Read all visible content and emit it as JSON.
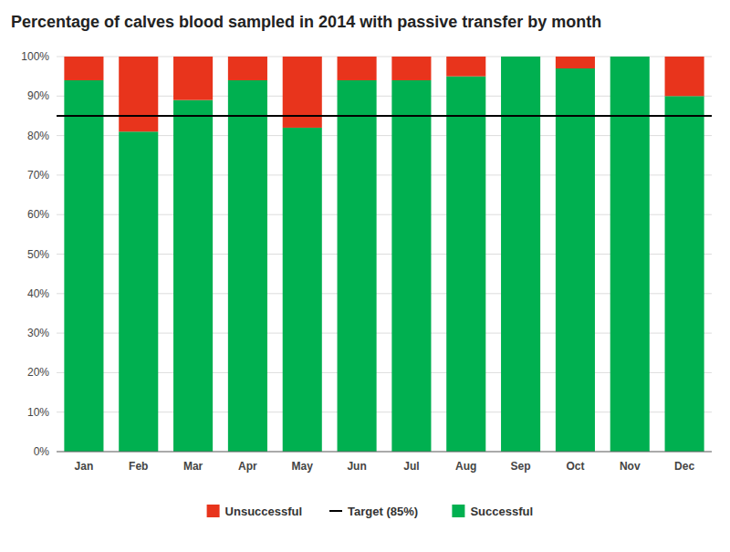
{
  "chart_data": {
    "type": "bar",
    "stacked": true,
    "title": "Percentage of calves blood sampled in 2014 with passive transfer by month",
    "categories": [
      "Jan",
      "Feb",
      "Mar",
      "Apr",
      "May",
      "Jun",
      "Jul",
      "Aug",
      "Sep",
      "Oct",
      "Nov",
      "Dec"
    ],
    "series": [
      {
        "name": "Successful",
        "color": "#00b050",
        "values": [
          94,
          81,
          89,
          94,
          82,
          94,
          94,
          95,
          100,
          97,
          100,
          90
        ]
      },
      {
        "name": "Unsuccessful",
        "color": "#e8341c",
        "values": [
          6,
          19,
          11,
          6,
          18,
          6,
          6,
          5,
          0,
          3,
          0,
          10
        ]
      }
    ],
    "target": {
      "name": "Target (85%)",
      "value": 85,
      "color": "#000000"
    },
    "ylim": [
      0,
      100
    ],
    "yticks": [
      {
        "value": 0,
        "label": "0%"
      },
      {
        "value": 10,
        "label": "10%"
      },
      {
        "value": 20,
        "label": "20%"
      },
      {
        "value": 30,
        "label": "30%"
      },
      {
        "value": 40,
        "label": "40%"
      },
      {
        "value": 50,
        "label": "50%"
      },
      {
        "value": 60,
        "label": "60%"
      },
      {
        "value": 70,
        "label": "70%"
      },
      {
        "value": 80,
        "label": "80%"
      },
      {
        "value": 90,
        "label": "90%"
      },
      {
        "value": 100,
        "label": "100%"
      }
    ],
    "grid": true,
    "legend": "bottom"
  }
}
